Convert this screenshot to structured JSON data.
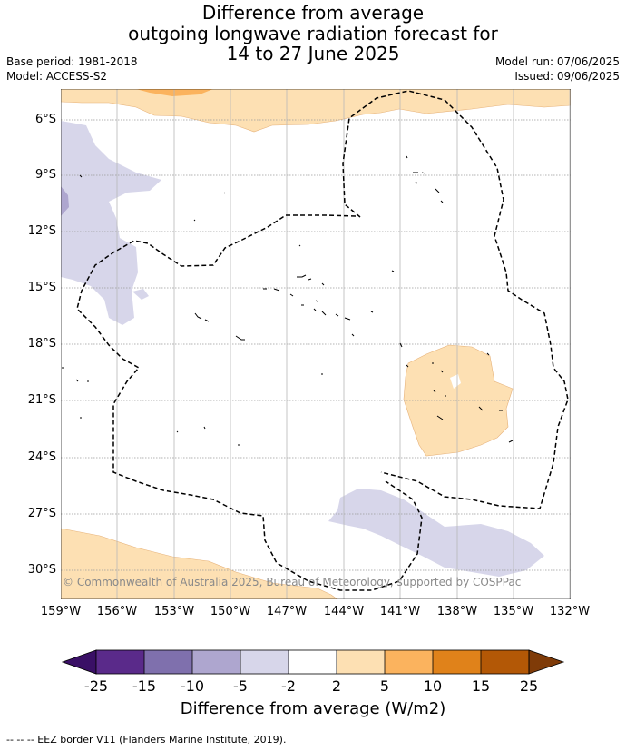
{
  "title": [
    "Difference from average",
    "outgoing longwave radiation forecast for",
    "14 to 27 June 2025"
  ],
  "base_period": "Base period: 1981-2018",
  "model": "Model: ACCESS-S2",
  "model_run": "Model run: 07/06/2025",
  "issued": "Issued: 09/06/2025",
  "map": {
    "lat_labels": [
      "6°S",
      "9°S",
      "12°S",
      "15°S",
      "18°S",
      "21°S",
      "24°S",
      "27°S",
      "30°S"
    ],
    "lon_labels": [
      "159°W",
      "156°W",
      "153°W",
      "150°W",
      "147°W",
      "144°W",
      "141°W",
      "138°W",
      "135°W",
      "132°W"
    ],
    "copyright": "© Commonwealth of Australia 2025, Bureau of Meteorology, supported by COSPPac"
  },
  "colorbar": {
    "labels": [
      "-25",
      "-15",
      "-10",
      "-5",
      "-2",
      "2",
      "5",
      "10",
      "15",
      "25"
    ],
    "colors": [
      "#3a1066",
      "#5a2a8a",
      "#7f70ad",
      "#aea6cf",
      "#d7d6ea",
      "#ffffff",
      "#fde0b3",
      "#fbb35e",
      "#e0821a",
      "#b35806",
      "#7f3b08"
    ],
    "title": "Difference from average (W/m2)"
  },
  "legend": "-- -- -- EEZ border V11 (Flanders Marine Institute, 2019)."
}
